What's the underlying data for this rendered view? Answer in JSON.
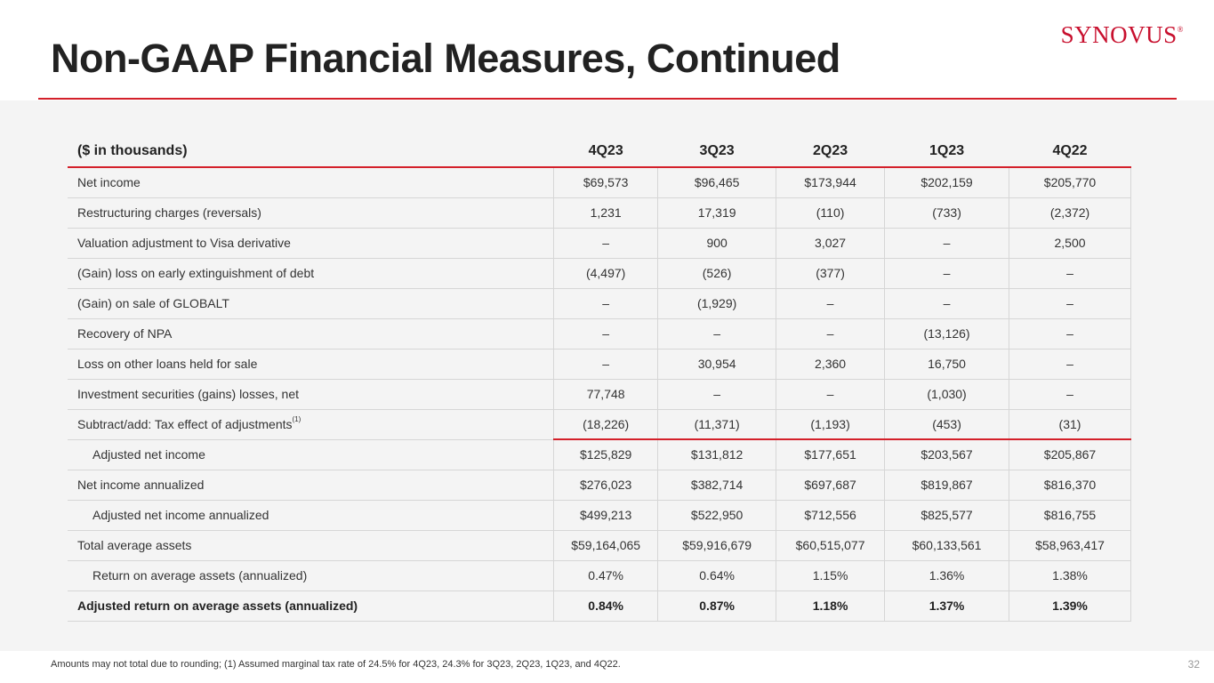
{
  "header": {
    "title": "Non-GAAP Financial Measures, Continued",
    "logo_text": "Synovus",
    "logo_mark": "®",
    "accent_color": "#d4202a"
  },
  "table": {
    "columns": [
      "($ in thousands)",
      "4Q23",
      "3Q23",
      "2Q23",
      "1Q23",
      "4Q22"
    ],
    "rows": [
      {
        "label": "Net income",
        "values": [
          "$69,573",
          "$96,465",
          "$173,944",
          "$202,159",
          "$205,770"
        ]
      },
      {
        "label": "Restructuring charges (reversals)",
        "values": [
          "1,231",
          "17,319",
          "(110)",
          "(733)",
          "(2,372)"
        ]
      },
      {
        "label": "Valuation adjustment to Visa derivative",
        "values": [
          "–",
          "900",
          "3,027",
          "–",
          "2,500"
        ]
      },
      {
        "label": "(Gain) loss on early extinguishment of debt",
        "values": [
          "(4,497)",
          "(526)",
          "(377)",
          "–",
          "–"
        ]
      },
      {
        "label": "(Gain) on sale of GLOBALT",
        "values": [
          "–",
          "(1,929)",
          "–",
          "–",
          "–"
        ]
      },
      {
        "label": "Recovery of NPA",
        "values": [
          "–",
          "–",
          "–",
          "(13,126)",
          "–"
        ]
      },
      {
        "label": "Loss on other loans held for sale",
        "values": [
          "–",
          "30,954",
          "2,360",
          "16,750",
          "–"
        ]
      },
      {
        "label": "Investment securities (gains) losses, net",
        "values": [
          "77,748",
          "–",
          "–",
          "(1,030)",
          "–"
        ]
      },
      {
        "label": "Subtract/add: Tax effect of adjustments",
        "footnote": "(1)",
        "values": [
          "(18,226)",
          "(11,371)",
          "(1,193)",
          "(453)",
          "(31)"
        ]
      },
      {
        "label": "Adjusted net income",
        "values": [
          "$125,829",
          "$131,812",
          "$177,651",
          "$203,567",
          "$205,867"
        ]
      },
      {
        "label": "Net income annualized",
        "values": [
          "$276,023",
          "$382,714",
          "$697,687",
          "$819,867",
          "$816,370"
        ]
      },
      {
        "label": "Adjusted net income annualized",
        "values": [
          "$499,213",
          "$522,950",
          "$712,556",
          "$825,577",
          "$816,755"
        ]
      },
      {
        "label": "Total average assets",
        "values": [
          "$59,164,065",
          "$59,916,679",
          "$60,515,077",
          "$60,133,561",
          "$58,963,417"
        ]
      },
      {
        "label": "Return on average assets (annualized)",
        "values": [
          "0.47%",
          "0.64%",
          "1.15%",
          "1.36%",
          "1.38%"
        ]
      },
      {
        "label": "Adjusted return on average assets (annualized)",
        "values": [
          "0.84%",
          "0.87%",
          "1.18%",
          "1.37%",
          "1.39%"
        ]
      }
    ]
  },
  "footer": {
    "footnote": "Amounts may not total due to rounding; (1) Assumed marginal tax rate of 24.5% for 4Q23, 24.3% for 3Q23, 2Q23, 1Q23, and 4Q22.",
    "page_number": "32"
  }
}
